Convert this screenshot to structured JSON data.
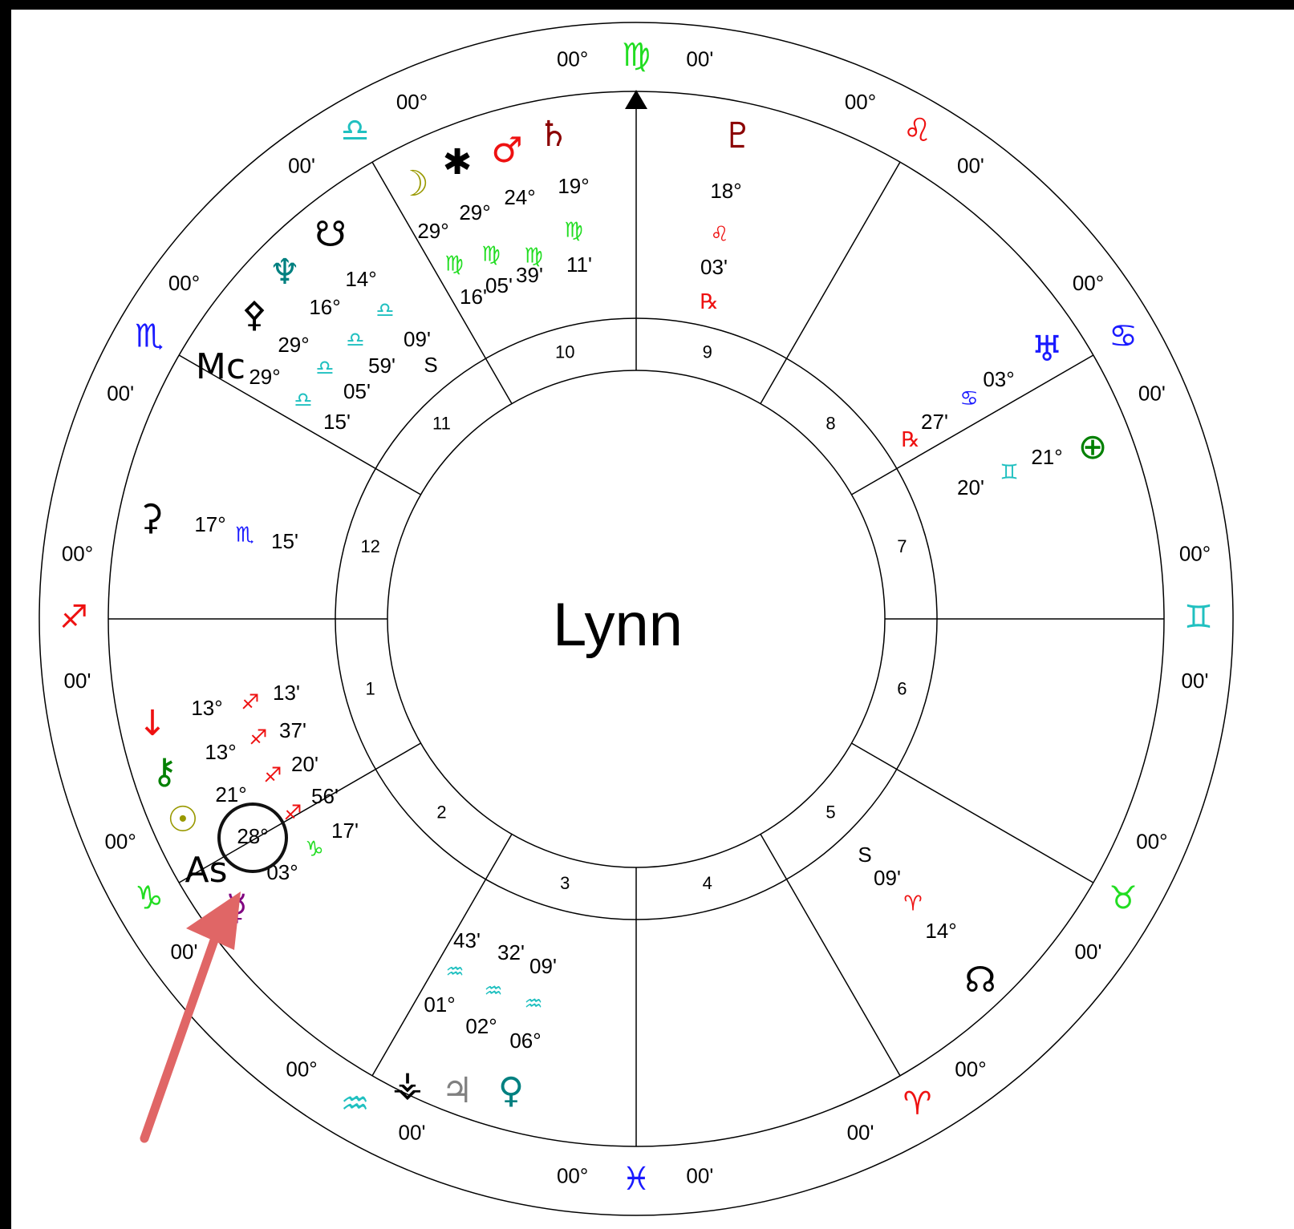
{
  "title": "Lynn",
  "signs": [
    {
      "degree": "00°",
      "glyph": "♍",
      "minute": "00'",
      "color": "#22dd22"
    },
    {
      "degree": "00°",
      "glyph": "♎",
      "minute": "00'",
      "color": "#20c0c0"
    },
    {
      "degree": "00°",
      "glyph": "♏",
      "minute": "00'",
      "color": "#1a1aff"
    },
    {
      "degree": "00°",
      "glyph": "♐",
      "minute": "00'",
      "color": "#ee1111"
    },
    {
      "degree": "00°",
      "glyph": "♑",
      "minute": "00'",
      "color": "#22dd22"
    },
    {
      "degree": "00°",
      "glyph": "♒",
      "minute": "00'",
      "color": "#20c0c0"
    },
    {
      "degree": "00°",
      "glyph": "♓",
      "minute": "00'",
      "color": "#1a1aff"
    },
    {
      "degree": "00°",
      "glyph": "♈",
      "minute": "00'",
      "color": "#ee1111"
    },
    {
      "degree": "00°",
      "glyph": "♉",
      "minute": "00'",
      "color": "#22dd22"
    },
    {
      "degree": "00°",
      "glyph": "♊",
      "minute": "00'",
      "color": "#20c0c0"
    },
    {
      "degree": "00°",
      "glyph": "♋",
      "minute": "00'",
      "color": "#1a1aff"
    },
    {
      "degree": "00°",
      "glyph": "♌",
      "minute": "00'",
      "color": "#ee1111"
    }
  ],
  "houses": [
    "1",
    "2",
    "3",
    "4",
    "5",
    "6",
    "7",
    "8",
    "9",
    "10",
    "11",
    "12"
  ],
  "planets": [
    {
      "glyph": "☽",
      "degree": "29°",
      "sign": "♍",
      "minute": "16'",
      "color": "#999900",
      "sign_color": "#22dd22"
    },
    {
      "glyph": "✱",
      "degree": "29°",
      "sign": "♍",
      "minute": "05'",
      "color": "#000000",
      "sign_color": "#22dd22"
    },
    {
      "glyph": "♂",
      "degree": "24°",
      "sign": "♍",
      "minute": "39'",
      "color": "#ee1111",
      "sign_color": "#22dd22"
    },
    {
      "glyph": "♄",
      "degree": "19°",
      "sign": "♍",
      "minute": "11'",
      "color": "#8b0000",
      "sign_color": "#22dd22"
    },
    {
      "glyph": "♇",
      "degree": "18°",
      "sign": "♌",
      "minute": "03'",
      "flag": "℞",
      "color": "#8b0000",
      "sign_color": "#ee1111"
    },
    {
      "glyph": "♅",
      "degree": "03°",
      "sign": "♋",
      "minute": "27'",
      "flag": "℞",
      "color": "#1a1aff",
      "sign_color": "#1a1aff"
    },
    {
      "glyph": "⊕",
      "degree": "21°",
      "sign": "♊",
      "minute": "20'",
      "color": "#008000",
      "sign_color": "#20c0c0"
    },
    {
      "glyph": "☊",
      "degree": "14°",
      "sign": "♈",
      "minute": "09'",
      "flag": "S",
      "color": "#000000",
      "sign_color": "#ee1111"
    },
    {
      "glyph": "♀",
      "degree": "06°",
      "sign": "♒",
      "minute": "09'",
      "color": "#008080",
      "sign_color": "#20c0c0"
    },
    {
      "glyph": "♃",
      "degree": "02°",
      "sign": "♒",
      "minute": "32'",
      "color": "#808080",
      "sign_color": "#20c0c0"
    },
    {
      "glyph": "⚶",
      "degree": "01°",
      "sign": "♒",
      "minute": "43'",
      "color": "#000000",
      "sign_color": "#20c0c0"
    },
    {
      "glyph": "☋",
      "degree": "14°",
      "sign": "♎",
      "minute": "09'",
      "flag": "S",
      "color": "#000000",
      "sign_color": "#20c0c0"
    },
    {
      "glyph": "♆",
      "degree": "16°",
      "sign": "♎",
      "minute": "59'",
      "color": "#008080",
      "sign_color": "#20c0c0"
    },
    {
      "glyph": "⚴",
      "degree": "29°",
      "sign": "♎",
      "minute": "05'",
      "color": "#000000",
      "sign_color": "#20c0c0"
    },
    {
      "glyph": "Mc",
      "degree": "29°",
      "sign": "♎",
      "minute": "15'",
      "color": "#000000",
      "sign_color": "#20c0c0"
    },
    {
      "glyph": "⚳",
      "degree": "17°",
      "sign": "♏",
      "minute": "15'",
      "color": "#000000",
      "sign_color": "#1a1aff"
    },
    {
      "glyph": "↓",
      "degree": "13°",
      "sign": "♐",
      "minute": "13'",
      "color": "#ee1111",
      "sign_color": "#ee1111"
    },
    {
      "glyph": "⚷",
      "degree": "13°",
      "sign": "♐",
      "minute": "37'",
      "color": "#008000",
      "sign_color": "#ee1111"
    },
    {
      "glyph": "☉",
      "degree": "21°",
      "sign": "♐",
      "minute": "20'",
      "color": "#999900",
      "sign_color": "#ee1111"
    },
    {
      "glyph": "As",
      "degree": "28°",
      "sign": "♐",
      "minute": "56'",
      "color": "#000000",
      "sign_color": "#ee1111"
    },
    {
      "glyph": "☿",
      "degree": "03°",
      "sign": "♑",
      "minute": "17'",
      "color": "#800080",
      "sign_color": "#22dd22"
    }
  ]
}
